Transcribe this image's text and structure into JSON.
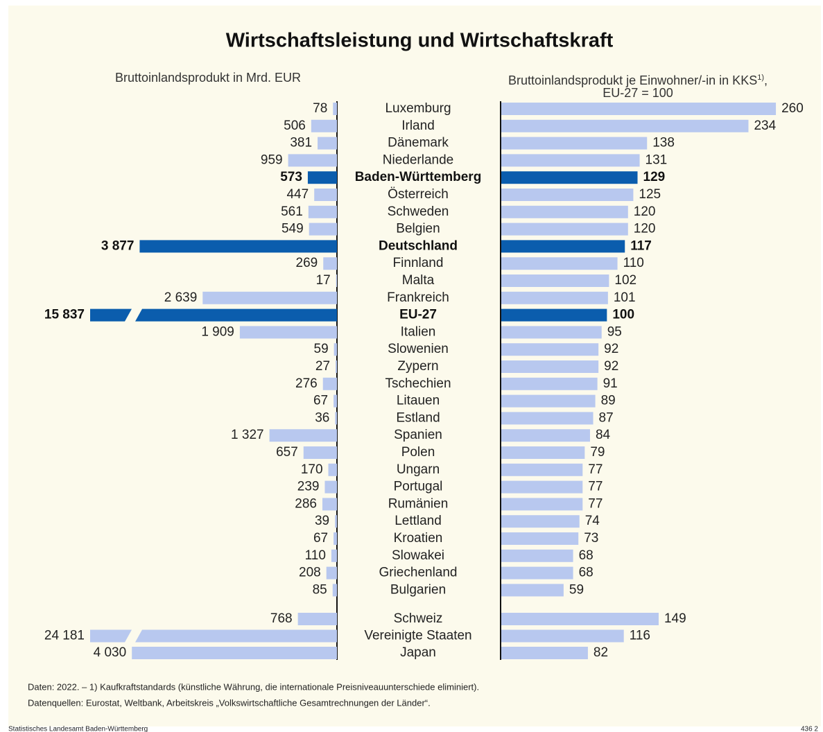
{
  "chart_data": {
    "type": "butterfly_bar",
    "title": "Wirtschaftsleistung und Wirtschaftskraft",
    "categories": [
      "Luxemburg",
      "Irland",
      "Dänemark",
      "Niederlande",
      "Baden-Württemberg",
      "Österreich",
      "Schweden",
      "Belgien",
      "Deutschland",
      "Finnland",
      "Malta",
      "Frankreich",
      "EU-27",
      "Italien",
      "Slowenien",
      "Zypern",
      "Tschechien",
      "Litauen",
      "Estland",
      "Spanien",
      "Polen",
      "Ungarn",
      "Portugal",
      "Rumänien",
      "Lettland",
      "Kroatien",
      "Slowakei",
      "Griechenland",
      "Bulgarien",
      "Schweiz",
      "Vereinigte Staaten",
      "Japan"
    ],
    "highlight_indices": [
      4,
      8,
      12
    ],
    "group_break_after": 28,
    "series": [
      {
        "name": "Bruttoinlandsprodukt in Mrd. EUR",
        "side": "left",
        "color": "#b8c8ef",
        "highlight_color": "#0b5dad",
        "xlim": [
          0,
          4850
        ],
        "values": [
          78,
          506,
          381,
          959,
          573,
          447,
          561,
          549,
          3877,
          269,
          17,
          2639,
          15837,
          1909,
          59,
          27,
          276,
          67,
          36,
          1327,
          657,
          170,
          239,
          286,
          39,
          67,
          110,
          208,
          85,
          768,
          24181,
          4030
        ],
        "value_labels": [
          "78",
          "506",
          "381",
          "959",
          "573",
          "447",
          "561",
          "549",
          "3 877",
          "269",
          "17",
          "2 639",
          "15 837",
          "1 909",
          "59",
          "27",
          "276",
          "67",
          "36",
          "1 327",
          "657",
          "170",
          "239",
          "286",
          "39",
          "67",
          "110",
          "208",
          "85",
          "768",
          "24 181",
          "4 030"
        ]
      },
      {
        "name": "Bruttoinlandsprodukt je Einwohner/-in in KKS",
        "name_note": "1)",
        "name_suffix": ", EU-27 = 100",
        "side": "right",
        "color": "#b8c8ef",
        "highlight_color": "#0b5dad",
        "xlim": [
          0,
          300
        ],
        "values": [
          260,
          234,
          138,
          131,
          129,
          125,
          120,
          120,
          117,
          110,
          102,
          101,
          100,
          95,
          92,
          92,
          91,
          89,
          87,
          84,
          79,
          77,
          77,
          77,
          74,
          73,
          68,
          68,
          59,
          149,
          116,
          82
        ]
      }
    ],
    "notes": [
      "Daten: 2022. – 1) Kaufkraftstandards (künstliche Währung, die internationale Preisniveauunterschiede eliminiert).",
      "Datenquellen: Eurostat, Weltbank, Arbeitskreis „Volkswirtschaftliche Gesamtrechnungen der Länder“."
    ],
    "source": "Statistisches Landesamt Baden-Württemberg",
    "code": "436 2"
  }
}
